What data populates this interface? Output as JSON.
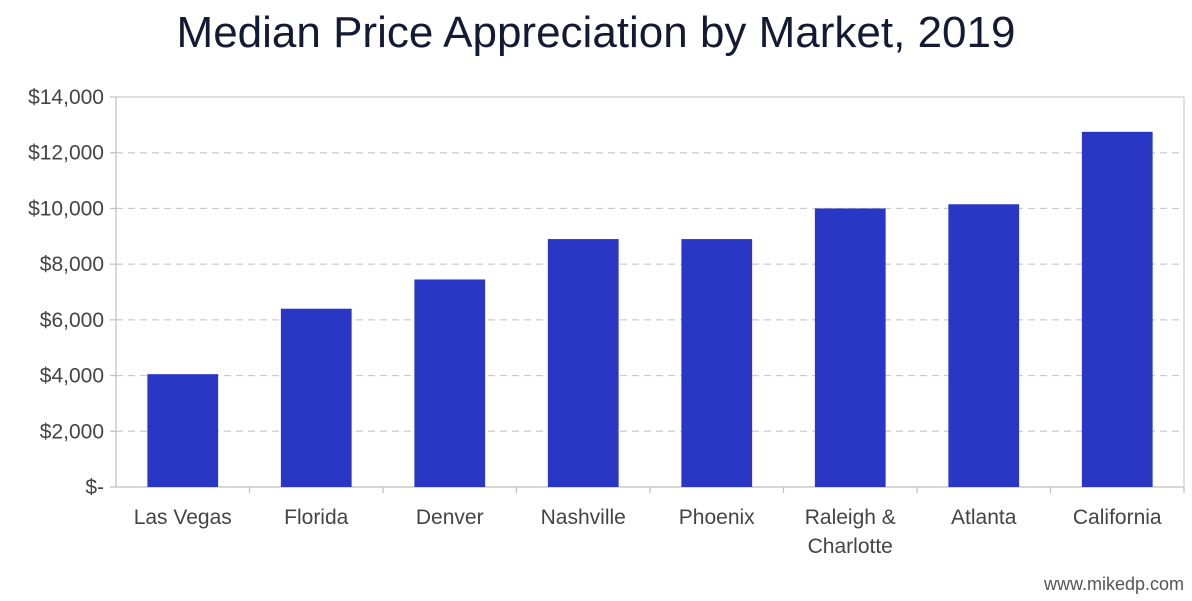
{
  "chart_data": {
    "type": "bar",
    "title": "Median Price Appreciation by Market, 2019",
    "categories": [
      [
        "Las Vegas"
      ],
      [
        "Florida"
      ],
      [
        "Denver"
      ],
      [
        "Nashville"
      ],
      [
        "Phoenix"
      ],
      [
        "Raleigh &",
        "Charlotte"
      ],
      [
        "Atlanta"
      ],
      [
        "California"
      ]
    ],
    "values": [
      4050,
      6400,
      7450,
      8900,
      8900,
      10000,
      10150,
      12750
    ],
    "ylim": [
      0,
      14000
    ],
    "yticks": [
      0,
      2000,
      4000,
      6000,
      8000,
      10000,
      12000,
      14000
    ],
    "ytick_labels": [
      "$-",
      "$2,000",
      "$4,000",
      "$6,000",
      "$8,000",
      "$10,000",
      "$12,000",
      "$14,000"
    ],
    "xlabel": "",
    "ylabel": "",
    "grid": true,
    "bar_color": "#2a37c4",
    "grid_color": "#cccccc",
    "axis_color": "#bfbfbf",
    "text_color": "#444444"
  },
  "watermark": "www.mikedp.com"
}
